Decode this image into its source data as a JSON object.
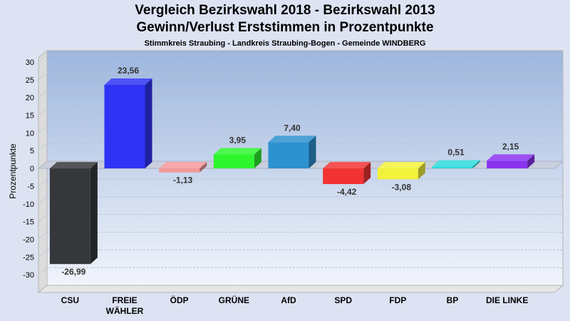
{
  "header": {
    "title": "Vergleich Bezirkswahl 2018 - Bezirkswahl 2013",
    "subtitle": "Gewinn/Verlust Erststimmen in Prozentpunkte",
    "caption": "Stimmkreis Straubing - Landkreis Straubing-Bogen - Gemeinde WINDBERG"
  },
  "chart_data": {
    "type": "bar",
    "title": "Vergleich Bezirkswahl 2018 - Bezirkswahl 2013",
    "subtitle": "Gewinn/Verlust Erststimmen in Prozentpunkte",
    "xlabel": "",
    "ylabel": "Prozentpunkte",
    "ylim": [
      -35,
      30
    ],
    "yticks": [
      30,
      25,
      20,
      15,
      10,
      5,
      0,
      -5,
      -10,
      -15,
      -20,
      -25,
      -30
    ],
    "grid": true,
    "categories": [
      "CSU",
      "FREIE WÄHLER",
      "ÖDP",
      "GRÜNE",
      "AfD",
      "SPD",
      "FDP",
      "BP",
      "DIE LINKE"
    ],
    "category_lines": [
      [
        "CSU"
      ],
      [
        "FREIE",
        "WÄHLER"
      ],
      [
        "ÖDP"
      ],
      [
        "GRÜNE"
      ],
      [
        "AfD"
      ],
      [
        "SPD"
      ],
      [
        "FDP"
      ],
      [
        "BP"
      ],
      [
        "DIE LINKE"
      ]
    ],
    "values": [
      -26.99,
      23.56,
      -1.13,
      3.95,
      7.4,
      -4.42,
      -3.08,
      0.51,
      2.15
    ],
    "value_labels": [
      "-26,99",
      "23,56",
      "-1,13",
      "3,95",
      "7,40",
      "-4,42",
      "-3,08",
      "0,51",
      "2,15"
    ],
    "colors": [
      "#35373b",
      "#2e33f6",
      "#f3989a",
      "#2ef52e",
      "#2d92cf",
      "#f33333",
      "#f2f23a",
      "#2fdcdc",
      "#8a33ee"
    ]
  }
}
